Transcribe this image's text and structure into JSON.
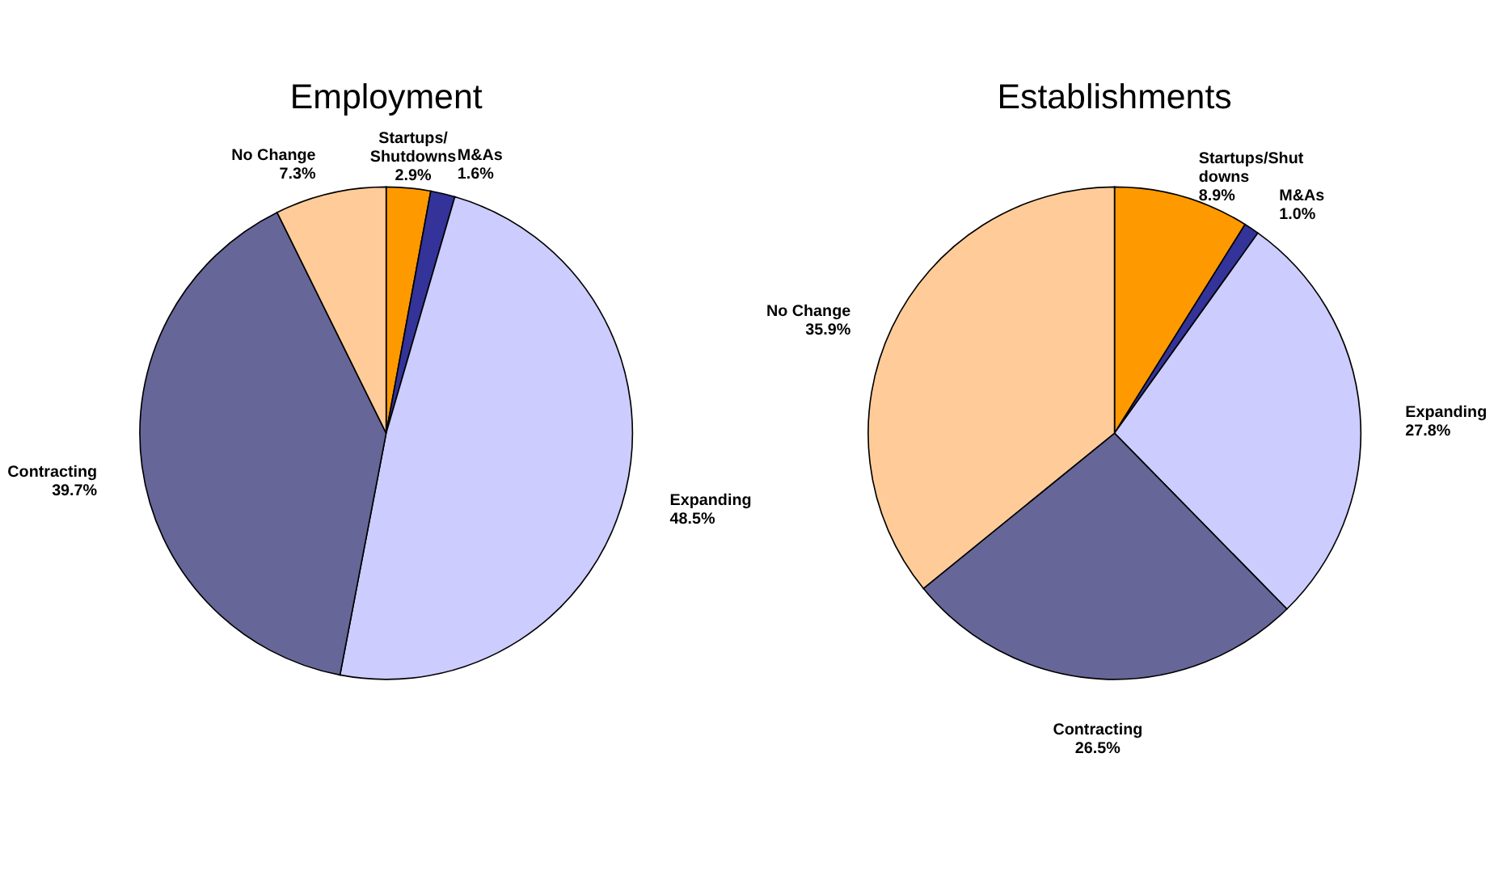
{
  "chart_data": [
    {
      "type": "pie",
      "title": "Employment",
      "categories": [
        "Startups/\nShutdowns",
        "M&As",
        "Expanding",
        "Contracting",
        "No Change"
      ],
      "values": [
        2.9,
        1.6,
        48.5,
        39.7,
        7.3
      ],
      "value_labels": [
        "2.9%",
        "1.6%",
        "48.5%",
        "39.7%",
        "7.3%"
      ],
      "colors": [
        "#ff9900",
        "#333399",
        "#ccccff",
        "#666699",
        "#ffcc99"
      ],
      "legend": false
    },
    {
      "type": "pie",
      "title": "Establishments",
      "categories": [
        "Startups/Shut\ndowns",
        "M&As",
        "Expanding",
        "Contracting",
        "No Change"
      ],
      "values": [
        8.9,
        1.0,
        27.8,
        26.5,
        35.9
      ],
      "value_labels": [
        "8.9%",
        "1.0%",
        "27.8%",
        "26.5%",
        "35.9%"
      ],
      "colors": [
        "#ff9900",
        "#333399",
        "#ccccff",
        "#666699",
        "#ffcc99"
      ],
      "legend": false
    }
  ]
}
